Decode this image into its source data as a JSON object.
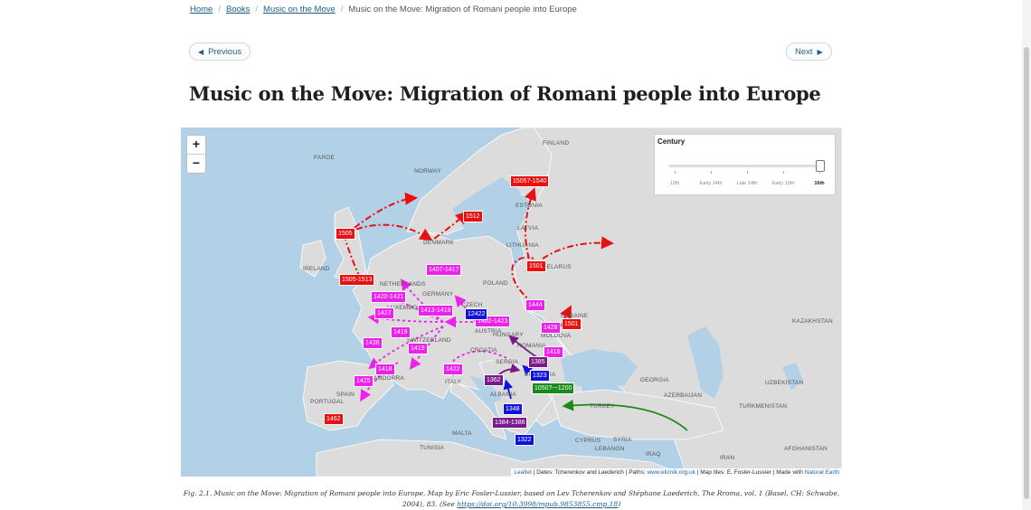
{
  "breadcrumb": {
    "home": "Home",
    "books": "Books",
    "book": "Music on the Move",
    "current": "Music on the Move: Migration of Romani people into Europe"
  },
  "nav": {
    "previous": "Previous",
    "next": "Next"
  },
  "page_title": "Music on the Move: Migration of Romani people into Europe",
  "map": {
    "zoom_in": "+",
    "zoom_out": "−",
    "timeline": {
      "title": "Century",
      "ticks": [
        "12th",
        "Early 14th",
        "Late 14th",
        "Early 15th",
        "16th"
      ],
      "selected": "16th"
    },
    "attribution": {
      "leaflet": "Leaflet",
      "text1": " | Dates: Tcherenkov and Laederich | Paths: ",
      "eliznik": "www.eliznik.org.uk",
      "text2": " | Map tiles: E. Fosler-Lussier | Made with ",
      "ne": "Natural Earth"
    },
    "countries": [
      "FINLAND",
      "FAROE",
      "NORWAY",
      "ESTONIA",
      "LATVIA",
      "LITHUANIA",
      "DENMARK",
      "POLAND",
      "BELARUS",
      "UKRAINE",
      "MOLDOVA",
      "IRELAND",
      "NETHERLANDS",
      "LUXEMBOURG",
      "GERMANY",
      "CZECH",
      "SWITZERLAND",
      "AUSTRIA",
      "HUNGARY",
      "ROMANIA",
      "CROATIA",
      "SERBIA",
      "BULGARIA",
      "ALBANIA",
      "ITALY",
      "ANDORRA",
      "SPAIN",
      "PORTUGAL",
      "TUNISIA",
      "MALTA",
      "CYPRUS",
      "LEBANON",
      "SYRIA",
      "IRAQ",
      "IRAN",
      "TURKEY",
      "GEORGIA",
      "AZERBAIJAN",
      "KAZAKHSTAN",
      "UZBEKISTAN",
      "TURKMENISTAN",
      "AFGHANISTAN"
    ],
    "date_labels": [
      {
        "text": "15057-1540",
        "color": "#e81010"
      },
      {
        "text": "1512",
        "color": "#e81010"
      },
      {
        "text": "1505",
        "color": "#e81010"
      },
      {
        "text": "1501",
        "color": "#e81010"
      },
      {
        "text": "1505-1513",
        "color": "#e81010"
      },
      {
        "text": "1501",
        "color": "#e81010"
      },
      {
        "text": "1462",
        "color": "#e81010"
      },
      {
        "text": "1407-1417",
        "color": "#ee20ee"
      },
      {
        "text": "1420-1421",
        "color": "#ee20ee"
      },
      {
        "text": "1413-1418",
        "color": "#ee20ee"
      },
      {
        "text": "1427",
        "color": "#ee20ee"
      },
      {
        "text": "1402-1423",
        "color": "#ee20ee"
      },
      {
        "text": "1444",
        "color": "#ee20ee"
      },
      {
        "text": "1428",
        "color": "#ee20ee"
      },
      {
        "text": "1419",
        "color": "#ee20ee"
      },
      {
        "text": "1436",
        "color": "#ee20ee"
      },
      {
        "text": "1419",
        "color": "#ee20ee"
      },
      {
        "text": "1416",
        "color": "#ee20ee"
      },
      {
        "text": "1418",
        "color": "#ee20ee"
      },
      {
        "text": "1425",
        "color": "#ee20ee"
      },
      {
        "text": "1422",
        "color": "#ee20ee"
      },
      {
        "text": "1385",
        "color": "#7a1a8a"
      },
      {
        "text": "1362",
        "color": "#7a1a8a"
      },
      {
        "text": "1384-1386",
        "color": "#7a1a8a"
      },
      {
        "text": "12422",
        "color": "#1212e0"
      },
      {
        "text": "1323",
        "color": "#1212e0"
      },
      {
        "text": "1348",
        "color": "#1212e0"
      },
      {
        "text": "1322",
        "color": "#1212e0"
      },
      {
        "text": "1050?-~1200",
        "color": "#1a8a1a"
      }
    ]
  },
  "caption": {
    "text": "Fig. 2.1. Music on the Move: Migration of Romani people into Europe. Map by Eric Fosler-Lussier, based on Lev Tcherenkov and Stéphane Laederich, The Rroma, vol. 1 (Basel, CH: Schwabe, 2004), 83. (See ",
    "link": "https://doi.org/10.3998/mpub.9853855.cmp.18",
    "end": ")"
  }
}
